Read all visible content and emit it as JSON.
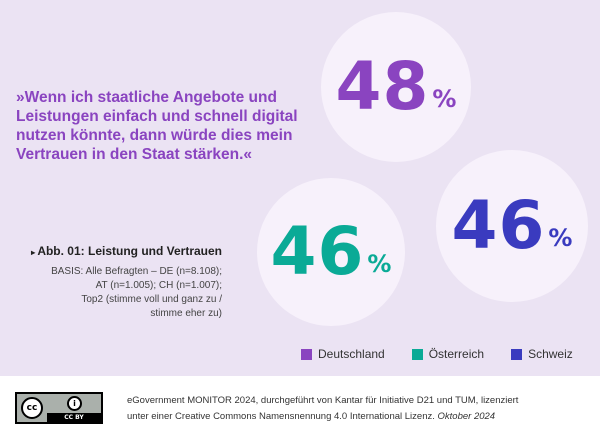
{
  "quote": "»Wenn ich staatliche Angebote und Leistungen einfach und schnell digital nutzen könnte, dann würde dies mein Vertrauen in den Staat stärken.«",
  "figure": {
    "title": "Abb. 01: Leistung und Vertrauen",
    "basis": [
      "BASIS: Alle Befragten – DE (n=8.108);",
      "AT (n=1.005); CH (n=1.007);",
      "Top2 (stimme voll und ganz zu /",
      "stimme eher zu)"
    ]
  },
  "chart_data": {
    "type": "bar",
    "categories": [
      "Deutschland",
      "Österreich",
      "Schweiz"
    ],
    "values": [
      48,
      46,
      46
    ],
    "unit": "%",
    "colors": [
      "#8a44c0",
      "#0aaa96",
      "#3a3bbf"
    ],
    "legend": "bottom-right"
  },
  "footer": {
    "line1": "eGovernment MONITOR 2024, durchgeführt von Kantar für Initiative D21 und TUM, lizenziert",
    "line2": "unter einer Creative Commons Namensnennung 4.0 International Lizenz.",
    "date": "Oktober 2024",
    "license_badge": "CC BY"
  }
}
